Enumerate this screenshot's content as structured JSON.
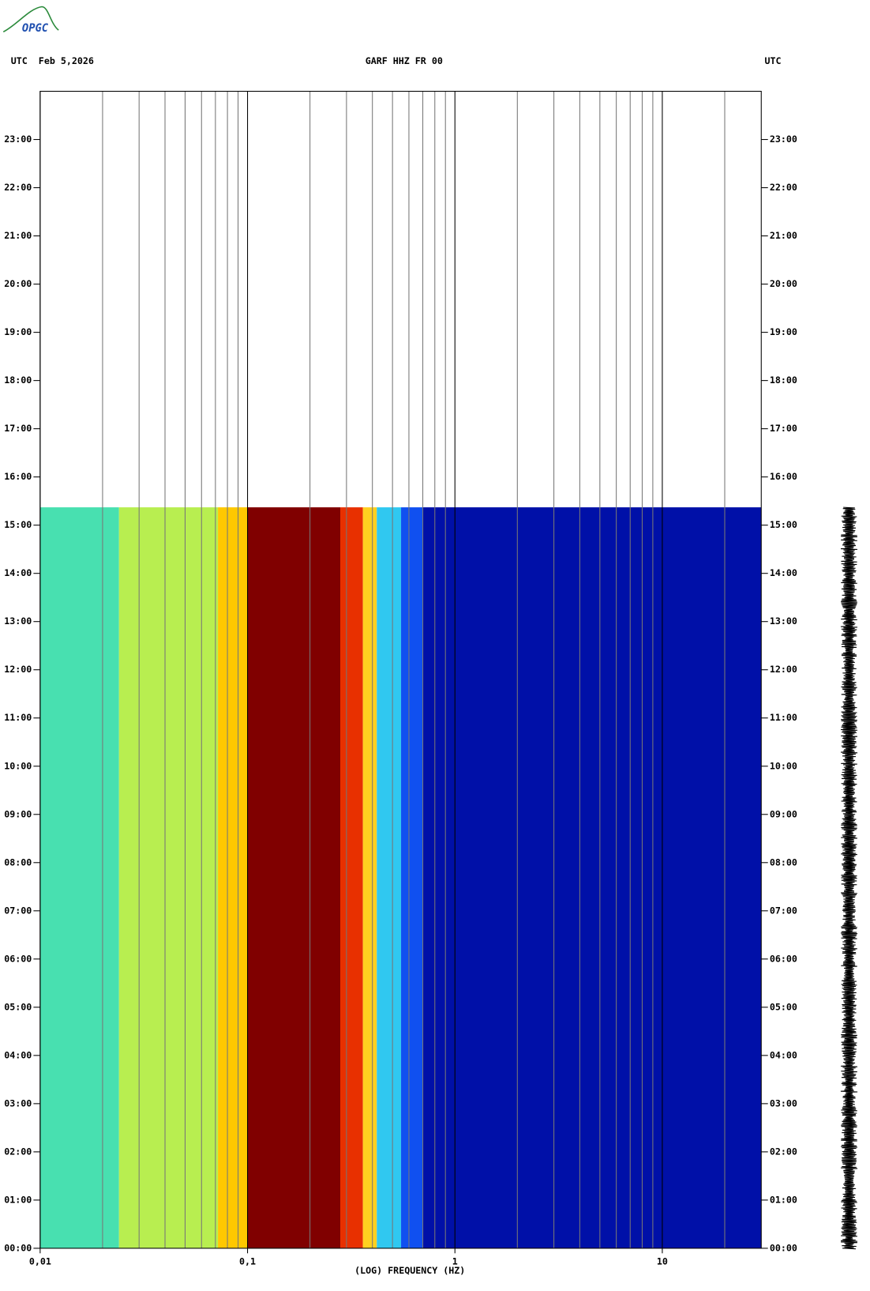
{
  "logo": "OPGC",
  "chart_data": {
    "type": "spectrogram",
    "title": "GARF HHZ FR 00",
    "left_header": "UTC  Feb 5,2026",
    "right_header": "UTC",
    "x_label": "(LOG) FREQUENCY (HZ)",
    "x_scale": "log",
    "xlim": [
      0.01,
      30
    ],
    "xticks": [
      {
        "value": 0.01,
        "label": "0,01"
      },
      {
        "value": 0.1,
        "label": "0,1"
      },
      1,
      10
    ],
    "xgrid": [
      0.02,
      0.03,
      0.04,
      0.05,
      0.06,
      0.07,
      0.08,
      0.09,
      0.2,
      0.3,
      0.4,
      0.5,
      0.6,
      0.7,
      0.8,
      0.9,
      2,
      3,
      4,
      5,
      6,
      7,
      8,
      9,
      20
    ],
    "ylim": [
      0,
      24
    ],
    "yticks": [
      {
        "value": 0,
        "label": "00:00"
      },
      {
        "value": 1,
        "label": "01:00"
      },
      {
        "value": 2,
        "label": "02:00"
      },
      {
        "value": 3,
        "label": "03:00"
      },
      {
        "value": 4,
        "label": "04:00"
      },
      {
        "value": 5,
        "label": "05:00"
      },
      {
        "value": 6,
        "label": "06:00"
      },
      {
        "value": 7,
        "label": "07:00"
      },
      {
        "value": 8,
        "label": "08:00"
      },
      {
        "value": 9,
        "label": "09:00"
      },
      {
        "value": 10,
        "label": "10:00"
      },
      {
        "value": 11,
        "label": "11:00"
      },
      {
        "value": 12,
        "label": "12:00"
      },
      {
        "value": 13,
        "label": "13:00"
      },
      {
        "value": 14,
        "label": "14:00"
      },
      {
        "value": 15,
        "label": "15:00"
      },
      {
        "value": 16,
        "label": "16:00"
      },
      {
        "value": 17,
        "label": "17:00"
      },
      {
        "value": 18,
        "label": "18:00"
      },
      {
        "value": 19,
        "label": "19:00"
      },
      {
        "value": 20,
        "label": "20:00"
      },
      {
        "value": 21,
        "label": "21:00"
      },
      {
        "value": 22,
        "label": "22:00"
      },
      {
        "value": 23,
        "label": "23:00"
      }
    ],
    "time_range": [
      0,
      15.37
    ],
    "bands": [
      {
        "from": 0.01,
        "to": 0.024,
        "color": "#48e0b0"
      },
      {
        "from": 0.024,
        "to": 0.072,
        "color": "#b8ee50"
      },
      {
        "from": 0.072,
        "to": 0.1,
        "color": "#ffc800"
      },
      {
        "from": 0.1,
        "to": 0.28,
        "color": "#800000"
      },
      {
        "from": 0.28,
        "to": 0.36,
        "color": "#e83000"
      },
      {
        "from": 0.36,
        "to": 0.42,
        "color": "#ffd020"
      },
      {
        "from": 0.42,
        "to": 0.55,
        "color": "#30c8f0"
      },
      {
        "from": 0.55,
        "to": 0.7,
        "color": "#1050f0"
      },
      {
        "from": 0.7,
        "to": 30,
        "color": "#0010a8"
      }
    ]
  }
}
